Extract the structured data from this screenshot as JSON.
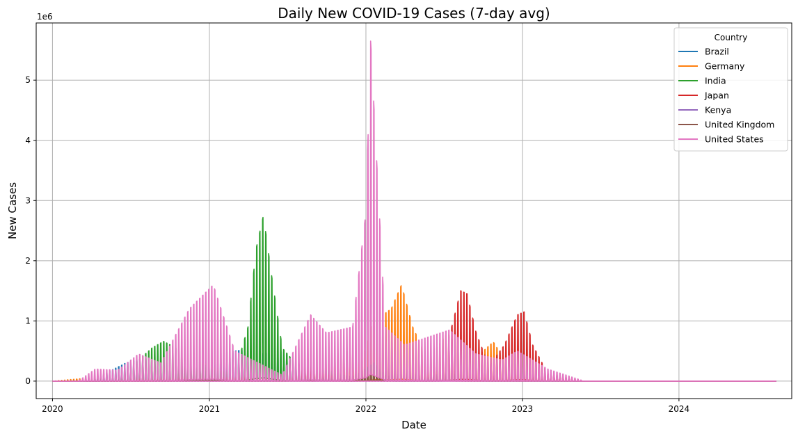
{
  "chart_data": {
    "type": "line",
    "title": "Daily New COVID-19 Cases (7-day avg)",
    "xlabel": "Date",
    "ylabel": "New Cases",
    "y_scale_label": "1e6",
    "x_ticks": [
      "2020",
      "2021",
      "2022",
      "2023",
      "2024"
    ],
    "y_ticks": [
      "0",
      "1",
      "2",
      "3",
      "4",
      "5"
    ],
    "xlim": [
      "2019-11-24",
      "2024-09-20"
    ],
    "ylim": [
      -0.29,
      5.95
    ],
    "grid": true,
    "legend": {
      "title": "Country",
      "placement": "top-right"
    },
    "series": [
      {
        "name": "Brazil",
        "color": "#1f77b4",
        "x": [
          "2020-01-01",
          "2020-03-20",
          "2020-05-10",
          "2020-06-20",
          "2020-08-01",
          "2020-10-01",
          "2020-11-20",
          "2021-01-10",
          "2021-03-01",
          "2021-03-25",
          "2021-05-01",
          "2021-06-20",
          "2021-07-15",
          "2021-09-01",
          "2021-12-01",
          "2022-01-25",
          "2022-02-10",
          "2022-04-01",
          "2022-06-20",
          "2022-08-20",
          "2022-11-01",
          "2022-12-20",
          "2023-03-01",
          "2023-05-25",
          "2024-08-15"
        ],
        "y": [
          0,
          0.01,
          0.15,
          0.3,
          0.38,
          0.25,
          0.3,
          0.45,
          0.5,
          0.52,
          0.45,
          0.5,
          0.35,
          0.15,
          0.08,
          0.4,
          0.6,
          0.15,
          0.3,
          0.2,
          0.12,
          0.25,
          0.1,
          0,
          0
        ]
      },
      {
        "name": "Germany",
        "color": "#ff7f0e",
        "x": [
          "2020-01-01",
          "2020-03-25",
          "2020-06-01",
          "2020-10-01",
          "2020-12-20",
          "2021-02-15",
          "2021-04-20",
          "2021-06-15",
          "2021-11-20",
          "2022-01-01",
          "2022-01-25",
          "2022-02-10",
          "2022-03-01",
          "2022-03-25",
          "2022-04-20",
          "2022-05-25",
          "2022-07-10",
          "2022-09-01",
          "2022-10-25",
          "2022-11-25",
          "2023-01-15",
          "2023-03-01",
          "2023-05-25",
          "2024-08-15"
        ],
        "y": [
          0,
          0.05,
          0.01,
          0.1,
          0.3,
          0.1,
          0.25,
          0.02,
          0.5,
          0.5,
          1.3,
          1.1,
          1.2,
          1.6,
          0.9,
          0.35,
          0.8,
          0.3,
          0.65,
          0.3,
          0.1,
          0.12,
          0,
          0
        ]
      },
      {
        "name": "India",
        "color": "#2ca02c",
        "x": [
          "2020-01-01",
          "2020-04-01",
          "2020-06-01",
          "2020-07-20",
          "2020-08-20",
          "2020-09-16",
          "2020-10-15",
          "2020-11-20",
          "2021-01-10",
          "2021-03-01",
          "2021-04-01",
          "2021-04-20",
          "2021-05-07",
          "2021-05-25",
          "2021-06-20",
          "2021-07-20",
          "2021-09-01",
          "2021-12-01",
          "2022-01-20",
          "2022-02-15",
          "2022-03-15",
          "2022-06-01",
          "2022-07-20",
          "2022-09-10",
          "2023-01-01",
          "2023-05-25",
          "2024-08-15"
        ],
        "y": [
          0,
          0.01,
          0.1,
          0.35,
          0.55,
          0.66,
          0.55,
          0.4,
          0.18,
          0.12,
          0.9,
          2.2,
          2.75,
          1.8,
          0.55,
          0.3,
          0.25,
          0.05,
          0.3,
          0.1,
          0.02,
          0.04,
          0.12,
          0.04,
          0.01,
          0,
          0
        ]
      },
      {
        "name": "Japan",
        "color": "#d62728",
        "x": [
          "2020-01-01",
          "2020-04-15",
          "2020-08-10",
          "2021-01-10",
          "2021-05-15",
          "2021-08-25",
          "2021-11-15",
          "2022-02-10",
          "2022-05-01",
          "2022-06-20",
          "2022-07-20",
          "2022-08-10",
          "2022-08-25",
          "2022-09-15",
          "2022-10-15",
          "2022-11-20",
          "2022-12-20",
          "2023-01-05",
          "2023-01-25",
          "2023-03-01",
          "2023-05-25",
          "2024-08-15"
        ],
        "y": [
          0,
          0.001,
          0.02,
          0.05,
          0.06,
          0.2,
          0.002,
          0.08,
          0.05,
          0.05,
          0.9,
          1.5,
          1.45,
          0.8,
          0.25,
          0.6,
          1.1,
          1.15,
          0.6,
          0.12,
          0,
          0
        ]
      },
      {
        "name": "Kenya",
        "color": "#9467bd",
        "x": [
          "2020-01-01",
          "2020-08-01",
          "2021-04-01",
          "2021-08-15",
          "2022-01-10",
          "2023-05-25",
          "2024-08-15"
        ],
        "y": [
          0,
          0.001,
          0.001,
          0.001,
          0.002,
          0,
          0
        ]
      },
      {
        "name": "United Kingdom",
        "color": "#8c564b",
        "x": [
          "2020-01-01",
          "2020-04-10",
          "2020-08-01",
          "2020-11-01",
          "2021-01-10",
          "2021-03-01",
          "2021-06-15",
          "2021-07-20",
          "2021-09-01",
          "2021-12-01",
          "2022-01-01",
          "2022-02-15",
          "2022-03-30",
          "2022-05-20",
          "2022-07-01",
          "2022-08-25",
          "2022-10-10",
          "2022-12-20",
          "2023-03-01",
          "2023-05-25",
          "2024-08-15"
        ],
        "y": [
          0,
          0.005,
          0.001,
          0.025,
          0.06,
          0.01,
          0.02,
          0.045,
          0.03,
          0.08,
          0.18,
          0.05,
          0.2,
          0.02,
          0.15,
          0.02,
          0.02,
          0.03,
          0.01,
          0,
          0
        ]
      },
      {
        "name": "United States",
        "color": "#e377c2",
        "x": [
          "2020-01-01",
          "2020-03-01",
          "2020-04-10",
          "2020-06-01",
          "2020-07-20",
          "2020-09-10",
          "2020-11-15",
          "2021-01-10",
          "2021-03-01",
          "2021-06-20",
          "2021-08-25",
          "2021-10-01",
          "2021-12-01",
          "2022-01-01",
          "2022-01-12",
          "2022-01-25",
          "2022-02-15",
          "2022-04-01",
          "2022-07-15",
          "2022-09-15",
          "2022-11-15",
          "2022-12-20",
          "2023-03-01",
          "2023-05-25",
          "2024-08-15"
        ],
        "y": [
          0,
          0.001,
          0.2,
          0.18,
          0.45,
          0.3,
          1.2,
          1.6,
          0.5,
          0.1,
          1.1,
          0.8,
          0.9,
          2.8,
          5.65,
          3.8,
          0.9,
          0.6,
          0.85,
          0.45,
          0.35,
          0.5,
          0.2,
          0,
          0
        ]
      }
    ]
  }
}
